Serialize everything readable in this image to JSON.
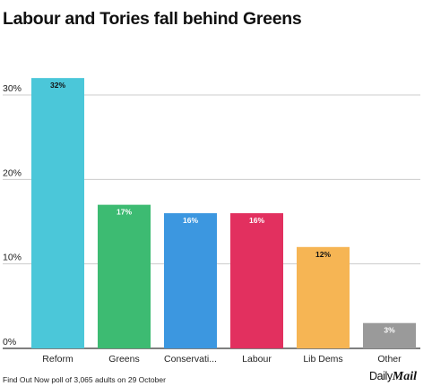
{
  "title": "Labour and Tories fall behind Greens",
  "footer": "Find Out Now poll of 3,065 adults on 29 October",
  "brand": {
    "part1": "Daily",
    "part2": "Mail"
  },
  "chart_data": {
    "type": "bar",
    "title": "Labour and Tories fall behind Greens",
    "xlabel": "",
    "ylabel": "",
    "ylim": [
      0,
      30
    ],
    "yticks": [
      0,
      10,
      20,
      30
    ],
    "ytick_labels": [
      "0%",
      "10%",
      "20%",
      "30%"
    ],
    "grid": true,
    "categories": [
      "Reform",
      "Greens",
      "Conservati...",
      "Labour",
      "Lib Dems",
      "Other"
    ],
    "values": [
      32,
      17,
      16,
      16,
      12,
      3
    ],
    "data_labels": [
      "32%",
      "17%",
      "16%",
      "16%",
      "12%",
      "3%"
    ],
    "colors": [
      "#4bc7d9",
      "#3dbb72",
      "#3c97e0",
      "#e2305f",
      "#f6b554",
      "#9a9a9a"
    ],
    "label_colors": [
      "#111111",
      "#ffffff",
      "#ffffff",
      "#ffffff",
      "#111111",
      "#ffffff"
    ]
  }
}
